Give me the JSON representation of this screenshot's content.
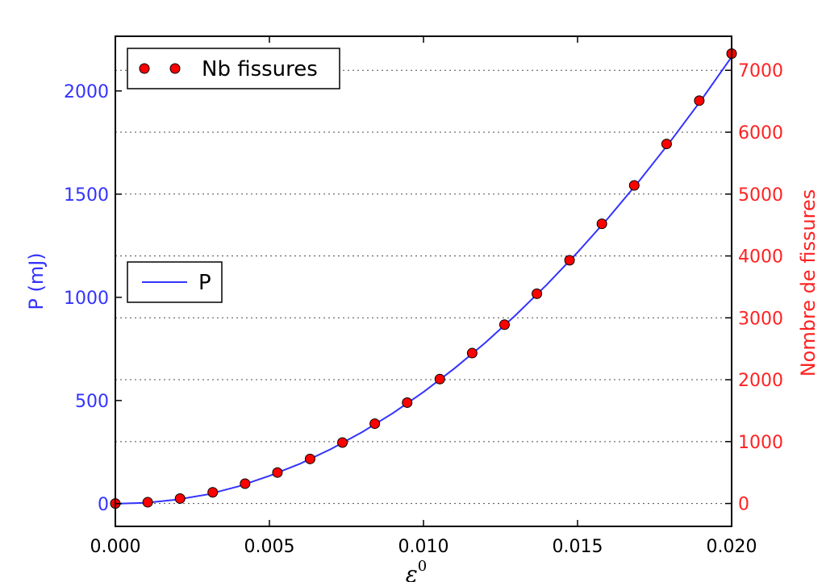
{
  "chart_data": {
    "type": "line",
    "xlabel": "ε",
    "xlabel_sup": "0",
    "xlim": [
      0.0,
      0.02
    ],
    "x_ticks": [
      "0.000",
      "0.005",
      "0.010",
      "0.015",
      "0.020"
    ],
    "x_tick_values": [
      0.0,
      0.005,
      0.01,
      0.015,
      0.02
    ],
    "left_axis": {
      "label": "P (mJ)",
      "color": "#3333ff",
      "ylim": [
        -110,
        2265
      ],
      "ticks": [
        "0",
        "500",
        "1000",
        "1500",
        "2000"
      ],
      "tick_values": [
        0,
        500,
        1000,
        1500,
        2000
      ]
    },
    "right_axis": {
      "label": "Nombre de fissures",
      "color": "#ff2222",
      "ylim": [
        -370,
        7550
      ],
      "ticks": [
        "0",
        "1000",
        "2000",
        "3000",
        "4000",
        "5000",
        "6000",
        "7000"
      ],
      "tick_values": [
        0,
        1000,
        2000,
        3000,
        4000,
        5000,
        6000,
        7000
      ]
    },
    "grid": "horizontal-dotted-right-axis",
    "series": [
      {
        "name": "P",
        "axis": "left",
        "kind": "line",
        "color": "#3333ff",
        "x": [
          0,
          0.001,
          0.002,
          0.003,
          0.004,
          0.005,
          0.006,
          0.007,
          0.008,
          0.009,
          0.01,
          0.011,
          0.012,
          0.013,
          0.014,
          0.015,
          0.016,
          0.017,
          0.018,
          0.019,
          0.02
        ],
        "y": [
          0,
          4.3,
          20,
          45,
          84,
          135,
          194,
          265,
          346,
          438,
          541,
          655,
          779,
          915,
          1061,
          1218,
          1385,
          1564,
          1753,
          1953,
          2165
        ]
      },
      {
        "name": "Nb fissures",
        "axis": "right",
        "kind": "scatter",
        "color": "#ff0000",
        "x": [
          0,
          0.00105,
          0.0021,
          0.00316,
          0.00421,
          0.00526,
          0.00632,
          0.00737,
          0.00842,
          0.00947,
          0.01053,
          0.01158,
          0.01263,
          0.01368,
          0.01474,
          0.01579,
          0.01684,
          0.01789,
          0.01895,
          0.02
        ],
        "y": [
          0,
          20,
          80,
          180,
          320,
          500,
          720,
          985,
          1290,
          1630,
          2010,
          2430,
          2890,
          3390,
          3930,
          4520,
          5140,
          5810,
          6510,
          7270
        ]
      }
    ],
    "legends": [
      {
        "label": "Nb fissures",
        "placement": "top-left"
      },
      {
        "label": "P",
        "placement": "center-left"
      }
    ]
  }
}
